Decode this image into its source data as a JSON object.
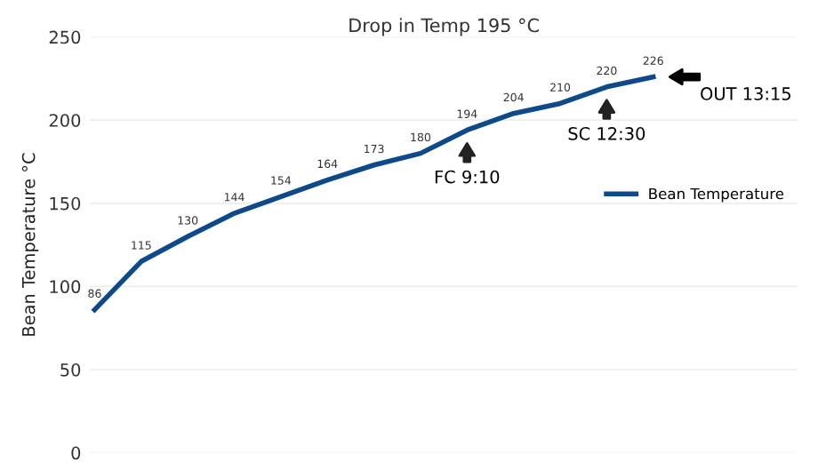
{
  "chart_data": {
    "type": "line",
    "title": "Drop in Temp 195 °C",
    "ylabel": "Bean Temperature °C",
    "categories": [
      null,
      null,
      null,
      null,
      null,
      null,
      null,
      null,
      null,
      null,
      null,
      null,
      null
    ],
    "series": [
      {
        "name": "Bean Temperature",
        "color": "#0e4a8a",
        "values": [
          86,
          115,
          130,
          144,
          154,
          164,
          173,
          180,
          194,
          204,
          210,
          220,
          226
        ]
      }
    ],
    "ylim": [
      0,
      250
    ],
    "yticks": [
      0,
      50,
      100,
      150,
      200,
      250
    ],
    "grid": "y",
    "legend": "right",
    "data_labels": true,
    "marker": "none",
    "annotations": [
      {
        "text": "FC 9:10",
        "y": 194
      },
      {
        "text": "SC 12:30",
        "y": 220
      },
      "OUT 13:15"
    ]
  }
}
